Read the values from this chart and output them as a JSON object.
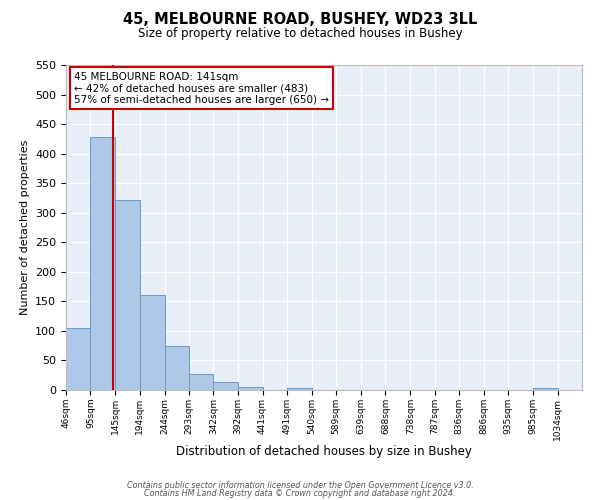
{
  "title": "45, MELBOURNE ROAD, BUSHEY, WD23 3LL",
  "subtitle": "Size of property relative to detached houses in Bushey",
  "xlabel": "Distribution of detached houses by size in Bushey",
  "ylabel": "Number of detached properties",
  "bin_labels": [
    "46sqm",
    "95sqm",
    "145sqm",
    "194sqm",
    "244sqm",
    "293sqm",
    "342sqm",
    "392sqm",
    "441sqm",
    "491sqm",
    "540sqm",
    "589sqm",
    "639sqm",
    "688sqm",
    "738sqm",
    "787sqm",
    "836sqm",
    "886sqm",
    "935sqm",
    "985sqm",
    "1034sqm"
  ],
  "bar_values": [
    105,
    428,
    321,
    161,
    75,
    27,
    13,
    5,
    0,
    4,
    0,
    0,
    0,
    0,
    0,
    0,
    0,
    0,
    0,
    3,
    0
  ],
  "bin_edges": [
    46,
    95,
    145,
    194,
    244,
    293,
    342,
    392,
    441,
    491,
    540,
    589,
    639,
    688,
    738,
    787,
    836,
    886,
    935,
    985,
    1034
  ],
  "bar_color": "#aec9e8",
  "bar_edge_color": "#6699cc",
  "property_line_x": 141,
  "property_line_color": "#cc0000",
  "annotation_line1": "45 MELBOURNE ROAD: 141sqm",
  "annotation_line2": "← 42% of detached houses are smaller (483)",
  "annotation_line3": "57% of semi-detached houses are larger (650) →",
  "ylim": [
    0,
    550
  ],
  "yticks": [
    0,
    50,
    100,
    150,
    200,
    250,
    300,
    350,
    400,
    450,
    500,
    550
  ],
  "background_color": "#e8eef8",
  "footer_line1": "Contains HM Land Registry data © Crown copyright and database right 2024.",
  "footer_line2": "Contains public sector information licensed under the Open Government Licence v3.0."
}
